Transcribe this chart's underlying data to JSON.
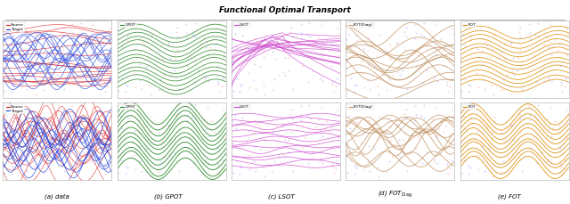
{
  "title": "Functional Optimal Transport",
  "col_labels": [
    "(a) data",
    "(b) GPOT",
    "(c) LSOT",
    "(d) FOT$_{\\mathrm{Diag}}$",
    "(e) FOT"
  ],
  "colors": {
    "source": "#dd2222",
    "target": "#2244dd",
    "gpot": "#228822",
    "lsot": "#cc44cc",
    "fotdiag": "#c09060",
    "fot": "#dd8800"
  },
  "bg_dot_color_red": "#ffbbbb",
  "bg_dot_color_blue": "#bbbbff",
  "figsize": [
    6.4,
    2.29
  ],
  "dpi": 100
}
